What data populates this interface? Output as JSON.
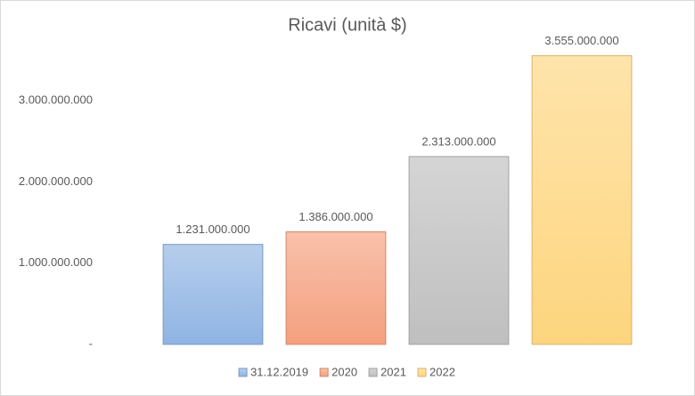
{
  "chart_data": {
    "type": "bar",
    "title": "Ricavi (unità $)",
    "categories": [
      null
    ],
    "series": [
      {
        "name": "31.12.2019",
        "color": "#8fb4e3",
        "values": [
          1231000000
        ],
        "value_labels": [
          "1.231.000.000"
        ]
      },
      {
        "name": "2020",
        "color": "#f4a07e",
        "values": [
          1386000000
        ],
        "value_labels": [
          "1.386.000.000"
        ]
      },
      {
        "name": "2021",
        "color": "#bfbfbf",
        "values": [
          2313000000
        ],
        "value_labels": [
          "2.313.000.000"
        ]
      },
      {
        "name": "2022",
        "color": "#fdd57e",
        "values": [
          3555000000
        ],
        "value_labels": [
          "3.555.000.000"
        ]
      }
    ],
    "ylim": [
      0,
      4000000000
    ],
    "yticks": [
      {
        "value": 0,
        "label": "-"
      },
      {
        "value": 1000000000,
        "label": "1.000.000.000"
      },
      {
        "value": 2000000000,
        "label": "2.000.000.000"
      },
      {
        "value": 3000000000,
        "label": "3.000.000.000"
      }
    ],
    "grid": false,
    "legend": "bottom"
  }
}
